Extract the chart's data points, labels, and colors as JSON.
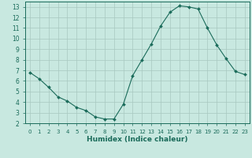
{
  "x": [
    0,
    1,
    2,
    3,
    4,
    5,
    6,
    7,
    8,
    9,
    10,
    11,
    12,
    13,
    14,
    15,
    16,
    17,
    18,
    19,
    20,
    21,
    22,
    23
  ],
  "y": [
    6.8,
    6.2,
    5.4,
    4.5,
    4.1,
    3.5,
    3.2,
    2.6,
    2.4,
    2.4,
    3.8,
    6.5,
    8.0,
    9.5,
    11.2,
    12.5,
    13.1,
    13.0,
    12.8,
    11.0,
    9.4,
    8.1,
    6.9,
    6.6
  ],
  "xlim": [
    -0.5,
    23.5
  ],
  "ylim": [
    2,
    13.5
  ],
  "yticks": [
    2,
    3,
    4,
    5,
    6,
    7,
    8,
    9,
    10,
    11,
    12,
    13
  ],
  "xticks": [
    0,
    1,
    2,
    3,
    4,
    5,
    6,
    7,
    8,
    9,
    10,
    11,
    12,
    13,
    14,
    15,
    16,
    17,
    18,
    19,
    20,
    21,
    22,
    23
  ],
  "xlabel": "Humidex (Indice chaleur)",
  "line_color": "#1a6b5a",
  "marker": "D",
  "marker_size": 2.0,
  "bg_color": "#c8e8e0",
  "grid_color": "#a8c8c0",
  "title": ""
}
